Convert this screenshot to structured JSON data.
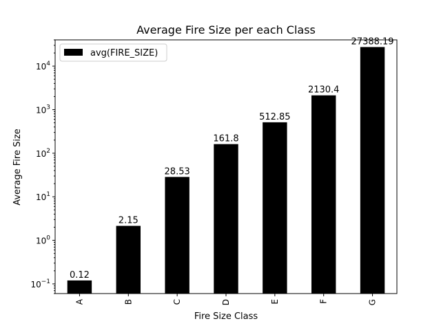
{
  "chart_data": {
    "type": "bar",
    "title": "Average Fire Size per each Class",
    "xlabel": "Fire Size Class",
    "ylabel": "Average Fire Size",
    "yscale": "log",
    "ylim": [
      0.06,
      40000
    ],
    "categories": [
      "A",
      "B",
      "C",
      "D",
      "E",
      "F",
      "G"
    ],
    "series": [
      {
        "name": "avg(FIRE_SIZE)",
        "values": [
          0.12,
          2.15,
          28.53,
          161.8,
          512.85,
          2130.4,
          27388.19
        ],
        "color": "#000000"
      }
    ],
    "data_labels": [
      "0.12",
      "2.15",
      "28.53",
      "161.8",
      "512.85",
      "2130.4",
      "27388.19"
    ],
    "y_ticks": [
      {
        "value": 0.1,
        "base": "10",
        "exp": "−1"
      },
      {
        "value": 1,
        "base": "10",
        "exp": "0"
      },
      {
        "value": 10,
        "base": "10",
        "exp": "1"
      },
      {
        "value": 100,
        "base": "10",
        "exp": "2"
      },
      {
        "value": 1000,
        "base": "10",
        "exp": "3"
      },
      {
        "value": 10000,
        "base": "10",
        "exp": "4"
      }
    ],
    "grid": false,
    "legend_position": "top-left"
  }
}
